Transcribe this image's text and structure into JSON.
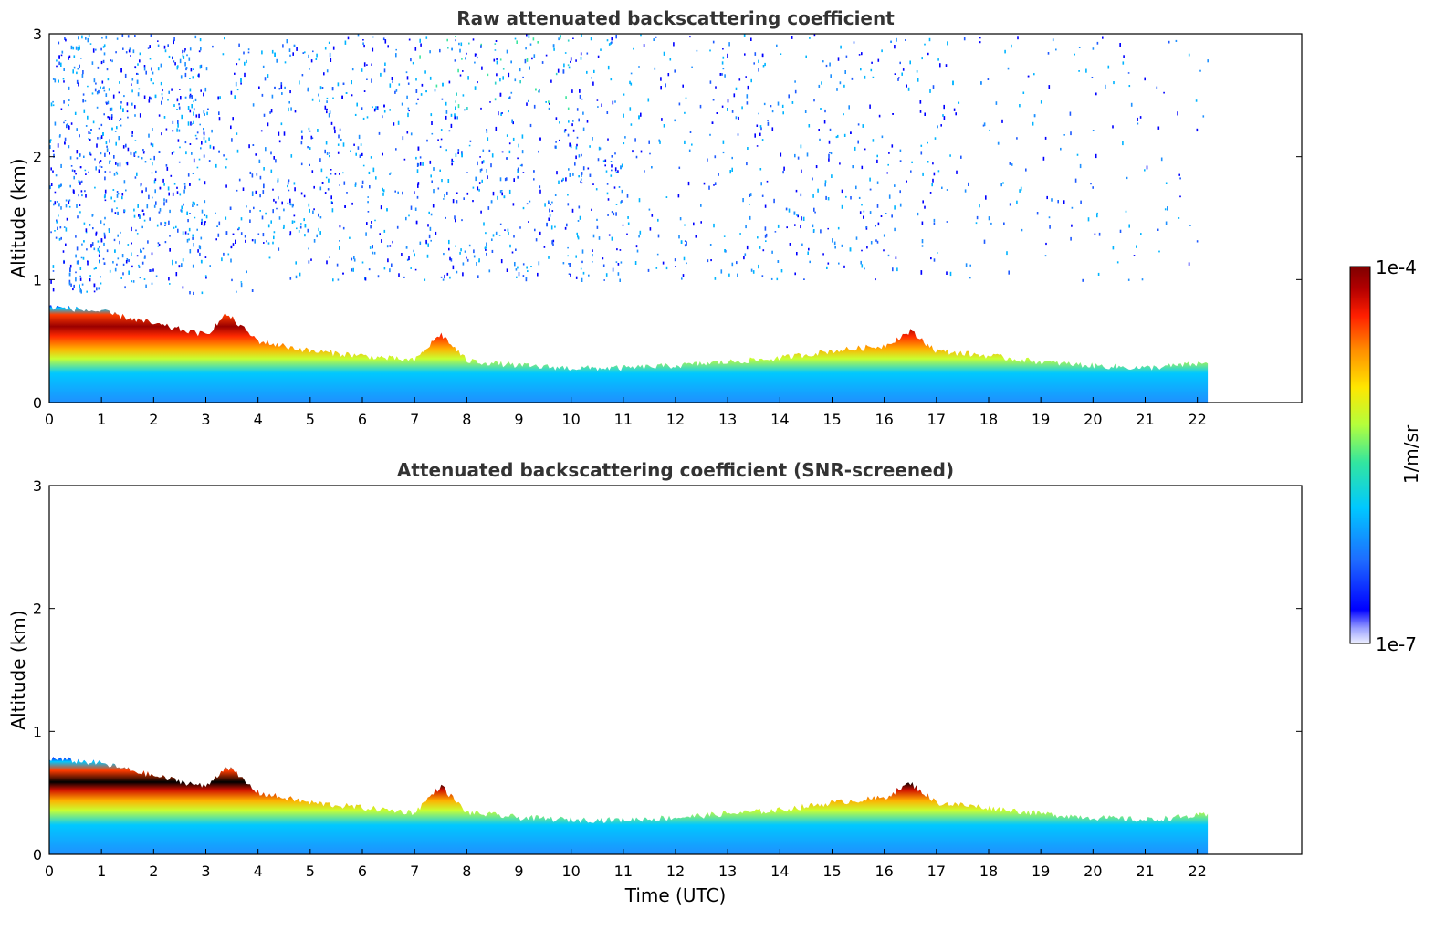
{
  "chart_data": [
    {
      "type": "heatmap",
      "title": "Raw attenuated backscattering coefficient",
      "xlabel": "",
      "ylabel": "Altitude (km)",
      "xlim": [
        0,
        24
      ],
      "ylim": [
        0,
        3
      ],
      "xticks": [
        "0",
        "1",
        "2",
        "3",
        "4",
        "5",
        "6",
        "7",
        "8",
        "9",
        "10",
        "11",
        "12",
        "13",
        "14",
        "15",
        "16",
        "17",
        "18",
        "19",
        "20",
        "21",
        "22"
      ],
      "yticks": [
        "0",
        "1",
        "2",
        "3"
      ],
      "data_time_range_utc": [
        0,
        22.2
      ],
      "aerosol_layer_top_km": [
        {
          "t": 0,
          "h": 0.78
        },
        {
          "t": 1,
          "h": 0.74
        },
        {
          "t": 2,
          "h": 0.64
        },
        {
          "t": 3,
          "h": 0.55
        },
        {
          "t": 3.4,
          "h": 0.72
        },
        {
          "t": 4,
          "h": 0.5
        },
        {
          "t": 5,
          "h": 0.42
        },
        {
          "t": 6,
          "h": 0.38
        },
        {
          "t": 7,
          "h": 0.34
        },
        {
          "t": 7.5,
          "h": 0.56
        },
        {
          "t": 8,
          "h": 0.34
        },
        {
          "t": 9,
          "h": 0.3
        },
        {
          "t": 10,
          "h": 0.28
        },
        {
          "t": 11,
          "h": 0.28
        },
        {
          "t": 12,
          "h": 0.3
        },
        {
          "t": 13,
          "h": 0.33
        },
        {
          "t": 14,
          "h": 0.36
        },
        {
          "t": 15,
          "h": 0.42
        },
        {
          "t": 16,
          "h": 0.46
        },
        {
          "t": 16.5,
          "h": 0.58
        },
        {
          "t": 17,
          "h": 0.42
        },
        {
          "t": 18,
          "h": 0.38
        },
        {
          "t": 19,
          "h": 0.33
        },
        {
          "t": 20,
          "h": 0.3
        },
        {
          "t": 21,
          "h": 0.28
        },
        {
          "t": 22.2,
          "h": 0.32
        }
      ],
      "noise_above_layer": true
    },
    {
      "type": "heatmap",
      "title": "Attenuated backscattering coefficient (SNR-screened)",
      "xlabel": "Time (UTC)",
      "ylabel": "Altitude (km)",
      "xlim": [
        0,
        24
      ],
      "ylim": [
        0,
        3
      ],
      "xticks": [
        "0",
        "1",
        "2",
        "3",
        "4",
        "5",
        "6",
        "7",
        "8",
        "9",
        "10",
        "11",
        "12",
        "13",
        "14",
        "15",
        "16",
        "17",
        "18",
        "19",
        "20",
        "21",
        "22"
      ],
      "yticks": [
        "0",
        "1",
        "2",
        "3"
      ],
      "data_time_range_utc": [
        0,
        22.2
      ],
      "aerosol_layer_top_km": [
        {
          "t": 0,
          "h": 0.78
        },
        {
          "t": 1,
          "h": 0.74
        },
        {
          "t": 2,
          "h": 0.64
        },
        {
          "t": 3,
          "h": 0.55
        },
        {
          "t": 3.4,
          "h": 0.72
        },
        {
          "t": 4,
          "h": 0.5
        },
        {
          "t": 5,
          "h": 0.42
        },
        {
          "t": 6,
          "h": 0.38
        },
        {
          "t": 7,
          "h": 0.34
        },
        {
          "t": 7.5,
          "h": 0.56
        },
        {
          "t": 8,
          "h": 0.34
        },
        {
          "t": 9,
          "h": 0.3
        },
        {
          "t": 10,
          "h": 0.28
        },
        {
          "t": 11,
          "h": 0.28
        },
        {
          "t": 12,
          "h": 0.3
        },
        {
          "t": 13,
          "h": 0.33
        },
        {
          "t": 14,
          "h": 0.36
        },
        {
          "t": 15,
          "h": 0.42
        },
        {
          "t": 16,
          "h": 0.46
        },
        {
          "t": 16.5,
          "h": 0.58
        },
        {
          "t": 17,
          "h": 0.42
        },
        {
          "t": 18,
          "h": 0.38
        },
        {
          "t": 19,
          "h": 0.33
        },
        {
          "t": 20,
          "h": 0.3
        },
        {
          "t": 21,
          "h": 0.28
        },
        {
          "t": 22.2,
          "h": 0.32
        }
      ],
      "noise_above_layer": false
    }
  ],
  "colorbar": {
    "max_label": "1e-4",
    "min_label": "1e-7",
    "unit_label": "1/m/sr",
    "scale": "log",
    "colormap": [
      "#ffffff",
      "#0000ff",
      "#1e90ff",
      "#00c8ff",
      "#32e6a0",
      "#c8ff32",
      "#ffe600",
      "#ff8c00",
      "#ff1e00",
      "#b40000",
      "#7f0000"
    ]
  }
}
